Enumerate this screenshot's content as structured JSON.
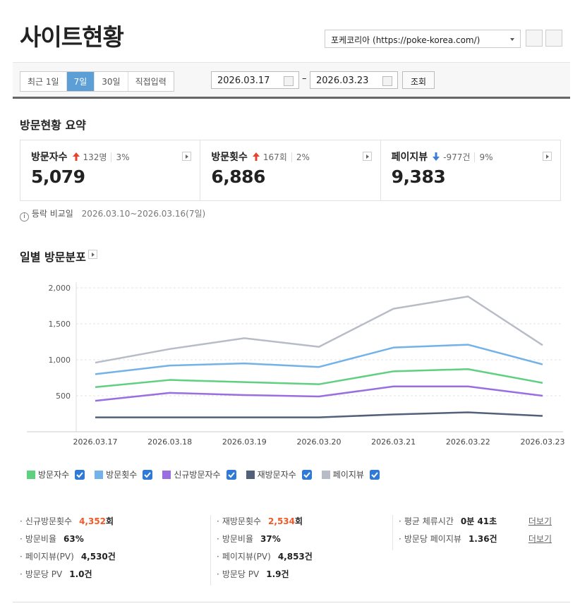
{
  "header": {
    "title": "사이트현황",
    "site_select": "포케코리아 (https://poke-korea.com/)"
  },
  "period": {
    "tabs": [
      "최근 1일",
      "7일",
      "30일",
      "직접입력"
    ],
    "active_tab": 1,
    "start_date": "2026.03.17",
    "separator": "–",
    "end_date": "2026.03.23",
    "button": "조회"
  },
  "summary": {
    "title": "방문현황 요약",
    "cards": [
      {
        "label": "방문자수",
        "direction": "up",
        "change": "132명",
        "percent": "3%",
        "value": "5,079"
      },
      {
        "label": "방문횟수",
        "direction": "up",
        "change": "167회",
        "percent": "2%",
        "value": "6,886"
      },
      {
        "label": "페이지뷰",
        "direction": "down",
        "change": "-977건",
        "percent": "9%",
        "value": "9,383"
      }
    ],
    "note_label": "등락 비교일",
    "note_range": "2026.03.10~2026.03.16(7일)"
  },
  "chart_data": {
    "type": "line",
    "title": "일별 방문분포",
    "categories": [
      "2026.03.17",
      "2026.03.18",
      "2026.03.19",
      "2026.03.20",
      "2026.03.21",
      "2026.03.22",
      "2026.03.23"
    ],
    "series": [
      {
        "name": "방문자수",
        "color": "#5fcf80",
        "checked": true,
        "values": [
          620,
          720,
          690,
          660,
          840,
          870,
          679
        ]
      },
      {
        "name": "방문횟수",
        "color": "#72b2e8",
        "checked": true,
        "values": [
          800,
          920,
          950,
          900,
          1170,
          1210,
          936
        ]
      },
      {
        "name": "신규방문자수",
        "color": "#9a6ee0",
        "checked": true,
        "values": [
          430,
          540,
          510,
          490,
          630,
          630,
          500
        ]
      },
      {
        "name": "재방문자수",
        "color": "#52607a",
        "checked": true,
        "values": [
          200,
          200,
          200,
          200,
          240,
          270,
          220
        ]
      },
      {
        "name": "페이지뷰",
        "color": "#b7bcc7",
        "checked": true,
        "values": [
          960,
          1150,
          1300,
          1180,
          1710,
          1880,
          1203
        ]
      }
    ],
    "ylim": [
      0,
      2000
    ],
    "yticks": [
      500,
      {
        "value": 1000,
        "label": "1,000"
      },
      {
        "value": 1500,
        "label": "1,500"
      },
      {
        "value": 2000,
        "label": "2,000"
      }
    ],
    "grid": true
  },
  "stats": {
    "columns": [
      [
        {
          "label": "신규방문횟수",
          "value": "4,352",
          "unit": "회",
          "highlight": true
        },
        {
          "label": "방문비율",
          "value": "63",
          "unit": "%",
          "highlight": false
        },
        {
          "label": "페이지뷰(PV)",
          "value": "4,530",
          "unit": "건",
          "highlight": false
        },
        {
          "label": "방문당 PV",
          "value": "1.0",
          "unit": "건",
          "highlight": false
        }
      ],
      [
        {
          "label": "재방문횟수",
          "value": "2,534",
          "unit": "회",
          "highlight": true
        },
        {
          "label": "방문비율",
          "value": "37",
          "unit": "%",
          "highlight": false
        },
        {
          "label": "페이지뷰(PV)",
          "value": "4,853",
          "unit": "건",
          "highlight": false
        },
        {
          "label": "방문당 PV",
          "value": "1.9",
          "unit": "건",
          "highlight": false
        }
      ],
      [
        {
          "label": "평균 체류시간",
          "value": "0분 41초",
          "unit": "",
          "highlight": false,
          "link": "더보기"
        },
        {
          "label": "방문당 페이지뷰",
          "value": "1.36",
          "unit": "건",
          "highlight": false,
          "link": "더보기"
        }
      ]
    ]
  }
}
